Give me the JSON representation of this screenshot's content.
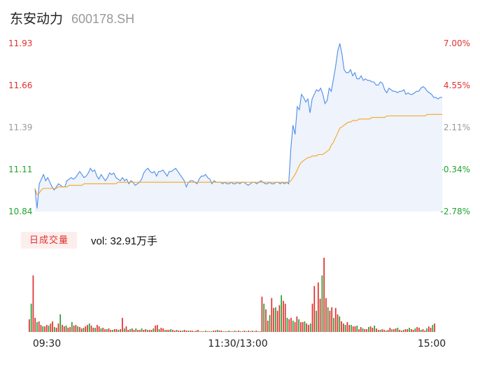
{
  "stock": {
    "name": "东安动力",
    "code": "600178.SH"
  },
  "chart_data": [
    {
      "type": "line",
      "ylim": [
        10.84,
        11.93
      ],
      "price_ticks": [
        "11.93",
        "11.66",
        "11.39",
        "11.11",
        "10.84"
      ],
      "pct_ticks": [
        "7.00%",
        "4.55%",
        "2.11%",
        "-0.34%",
        "-2.78%"
      ],
      "series": [
        {
          "name": "price",
          "values": [
            10.99,
            10.86,
            11.02,
            11.05,
            11.08,
            11.04,
            11.06,
            11.03,
            11.0,
            10.98,
            11.0,
            11.02,
            11.01,
            11.0,
            11.0,
            11.04,
            11.05,
            11.06,
            11.05,
            11.06,
            11.08,
            11.1,
            11.08,
            11.06,
            11.07,
            11.09,
            11.12,
            11.1,
            11.11,
            11.07,
            11.05,
            11.08,
            11.06,
            11.04,
            11.06,
            11.09,
            11.08,
            11.09,
            11.06,
            11.05,
            11.04,
            11.06,
            11.04,
            11.05,
            11.02,
            11.04,
            11.03,
            11.01,
            11.02,
            11.03,
            11.05,
            11.09,
            11.11,
            11.12,
            11.1,
            11.09,
            11.1,
            11.07,
            11.1,
            11.1,
            11.11,
            11.09,
            11.07,
            11.1,
            11.1,
            11.11,
            11.12,
            11.1,
            11.08,
            11.06,
            11.04,
            11.0,
            11.03,
            11.04,
            11.04,
            11.03,
            11.02,
            11.05,
            11.07,
            11.07,
            11.08,
            11.06,
            11.05,
            11.02,
            11.04,
            11.03,
            11.03,
            11.03,
            11.02,
            11.03,
            11.02,
            11.02,
            11.03,
            11.02,
            11.02,
            11.03,
            11.02,
            11.03,
            11.03,
            11.02,
            11.01,
            11.02,
            11.03,
            11.03,
            11.02,
            11.03,
            11.04,
            11.03,
            11.02,
            11.02,
            11.03,
            11.02,
            11.02,
            11.03,
            11.03,
            11.02,
            11.03,
            11.02,
            11.03,
            11.02,
            11.25,
            11.4,
            11.34,
            11.52,
            11.5,
            11.6,
            11.58,
            11.55,
            11.57,
            11.48,
            11.57,
            11.6,
            11.63,
            11.62,
            11.64,
            11.6,
            11.54,
            11.56,
            11.64,
            11.62,
            11.7,
            11.78,
            11.88,
            11.93,
            11.86,
            11.76,
            11.74,
            11.74,
            11.76,
            11.72,
            11.74,
            11.7,
            11.7,
            11.72,
            11.69,
            11.7,
            11.69,
            11.69,
            11.68,
            11.68,
            11.66,
            11.66,
            11.68,
            11.67,
            11.63,
            11.61,
            11.64,
            11.63,
            11.62,
            11.62,
            11.61,
            11.62,
            11.62,
            11.63,
            11.6,
            11.61,
            11.6,
            11.6,
            11.61,
            11.62,
            11.62,
            11.64,
            11.65,
            11.64,
            11.62,
            11.61,
            11.6,
            11.58,
            11.58,
            11.57,
            11.58,
            11.58
          ],
          "color": "#4e8de9"
        },
        {
          "name": "avg",
          "values": [
            10.99,
            10.95,
            10.96,
            10.98,
            10.99,
            10.99,
            10.99,
            10.99,
            10.99,
            10.99,
            10.99,
            11.0,
            11.0,
            11.0,
            11.0,
            11.0,
            11.01,
            11.01,
            11.01,
            11.01,
            11.01,
            11.01,
            11.01,
            11.02,
            11.02,
            11.02,
            11.02,
            11.02,
            11.02,
            11.02,
            11.02,
            11.02,
            11.02,
            11.02,
            11.02,
            11.02,
            11.02,
            11.02,
            11.02,
            11.03,
            11.03,
            11.03,
            11.03,
            11.03,
            11.03,
            11.03,
            11.03,
            11.03,
            11.03,
            11.03,
            11.03,
            11.03,
            11.03,
            11.03,
            11.03,
            11.03,
            11.03,
            11.03,
            11.03,
            11.03,
            11.03,
            11.03,
            11.03,
            11.03,
            11.03,
            11.03,
            11.03,
            11.03,
            11.03,
            11.03,
            11.03,
            11.03,
            11.03,
            11.03,
            11.03,
            11.03,
            11.03,
            11.03,
            11.03,
            11.03,
            11.03,
            11.03,
            11.03,
            11.03,
            11.03,
            11.03,
            11.03,
            11.03,
            11.03,
            11.03,
            11.03,
            11.03,
            11.03,
            11.03,
            11.03,
            11.03,
            11.03,
            11.03,
            11.03,
            11.03,
            11.03,
            11.03,
            11.03,
            11.03,
            11.03,
            11.03,
            11.03,
            11.03,
            11.03,
            11.03,
            11.03,
            11.03,
            11.03,
            11.03,
            11.03,
            11.03,
            11.03,
            11.03,
            11.03,
            11.03,
            11.04,
            11.06,
            11.08,
            11.11,
            11.14,
            11.16,
            11.17,
            11.18,
            11.19,
            11.19,
            11.2,
            11.2,
            11.2,
            11.21,
            11.21,
            11.21,
            11.22,
            11.23,
            11.24,
            11.27,
            11.29,
            11.32,
            11.35,
            11.38,
            11.39,
            11.4,
            11.41,
            11.42,
            11.42,
            11.43,
            11.43,
            11.43,
            11.44,
            11.44,
            11.44,
            11.44,
            11.44,
            11.44,
            11.45,
            11.45,
            11.45,
            11.45,
            11.45,
            11.45,
            11.45,
            11.46,
            11.46,
            11.46,
            11.46,
            11.46,
            11.46,
            11.46,
            11.46,
            11.46,
            11.46,
            11.46,
            11.46,
            11.46,
            11.46,
            11.46,
            11.46,
            11.46,
            11.46,
            11.46,
            11.47,
            11.47,
            11.47,
            11.47,
            11.47,
            11.47,
            11.47,
            11.47
          ],
          "color": "#f5a623"
        }
      ],
      "x_ticks": [
        "09:30",
        "11:30/13:00",
        "15:00"
      ]
    },
    {
      "type": "bar",
      "volume_label": "日成交量",
      "volume_text": "vol: 32.91万手",
      "values": [
        18,
        40,
        80,
        20,
        14,
        15,
        10,
        8,
        8,
        10,
        9,
        12,
        15,
        7,
        6,
        12,
        25,
        10,
        8,
        9,
        6,
        7,
        14,
        9,
        10,
        8,
        7,
        5,
        6,
        8,
        10,
        12,
        9,
        6,
        6,
        10,
        8,
        5,
        6,
        4,
        4,
        5,
        3,
        3,
        4,
        4,
        3,
        4,
        20,
        5,
        8,
        3,
        4,
        5,
        3,
        5,
        3,
        3,
        5,
        3,
        4,
        3,
        3,
        3,
        5,
        9,
        10,
        4,
        6,
        5,
        3,
        3,
        3,
        4,
        3,
        2,
        3,
        2,
        2,
        2,
        3,
        2,
        2,
        2,
        2,
        1,
        2,
        3,
        1,
        1,
        1,
        2,
        1,
        1,
        1,
        2,
        2,
        3,
        2,
        2,
        1,
        1,
        1,
        2,
        1,
        1,
        2,
        1,
        2,
        1,
        1,
        2,
        1,
        2,
        1,
        2,
        1,
        2,
        1,
        1,
        50,
        40,
        32,
        16,
        24,
        48,
        34,
        35,
        30,
        38,
        52,
        44,
        40,
        20,
        18,
        20,
        16,
        14,
        22,
        18,
        14,
        14,
        15,
        12,
        10,
        12,
        40,
        65,
        30,
        70,
        47,
        80,
        105,
        48,
        35,
        30,
        35,
        20,
        34,
        25,
        22,
        15,
        12,
        10,
        14,
        10,
        10,
        8,
        8,
        9,
        4,
        7,
        5,
        4,
        4,
        7,
        8,
        6,
        9,
        5,
        3,
        3,
        4,
        3,
        2,
        3,
        6,
        4,
        4,
        5,
        6,
        3,
        2,
        3,
        4,
        4,
        6,
        4,
        3,
        5,
        7,
        6,
        3,
        4,
        2,
        5,
        8,
        6,
        10,
        12
      ],
      "colors": [
        "#e0312e",
        "#22a332"
      ]
    }
  ]
}
